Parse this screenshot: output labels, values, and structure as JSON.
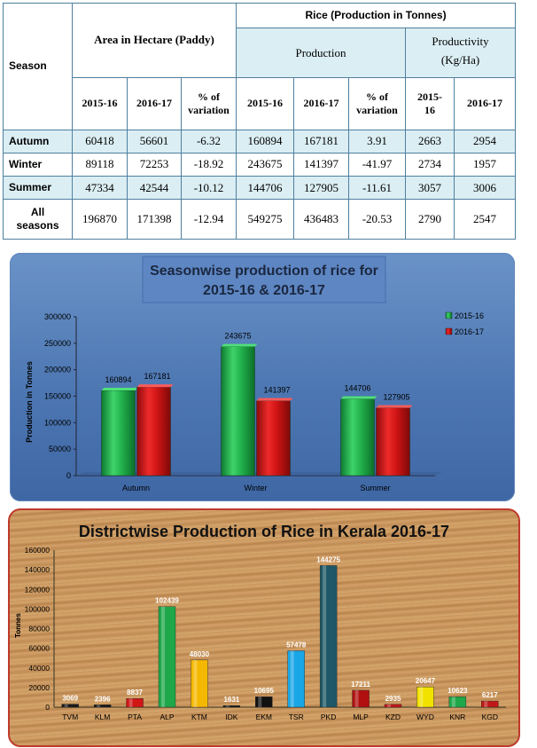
{
  "table": {
    "season_header": "Season",
    "area_header": "Area in Hectare (Paddy)",
    "rice_header": "Rice (Production in Tonnes)",
    "production_header": "Production",
    "productivity_header_1": "Productivity",
    "productivity_header_2": "(Kg/Ha)",
    "col_2015": "2015-16",
    "col_2016": "2016-17",
    "col_var_1": "% of",
    "col_var_2": "variation",
    "col_prod_2015_1": "2015-",
    "col_prod_2015_2": "16",
    "rows": [
      {
        "season_1": "Autumn",
        "season_2": "",
        "area_2015": "60418",
        "area_2016": "56601",
        "area_var": "-6.32",
        "prod_2015": "160894",
        "prod_2016": "167181",
        "prod_var": "3.91",
        "yield_2015": "2663",
        "yield_2016": "2954"
      },
      {
        "season_1": "Winter",
        "season_2": "",
        "area_2015": "89118",
        "area_2016": "72253",
        "area_var": "-18.92",
        "prod_2015": "243675",
        "prod_2016": "141397",
        "prod_var": "-41.97",
        "yield_2015": "2734",
        "yield_2016": "1957"
      },
      {
        "season_1": "Summer",
        "season_2": "",
        "area_2015": "47334",
        "area_2016": "42544",
        "area_var": "-10.12",
        "prod_2015": "144706",
        "prod_2016": "127905",
        "prod_var": "-11.61",
        "yield_2015": "3057",
        "yield_2016": "3006"
      },
      {
        "season_1": "All",
        "season_2": "seasons",
        "area_2015": "196870",
        "area_2016": "171398",
        "area_var": "-12.94",
        "prod_2015": "549275",
        "prod_2016": "436483",
        "prod_var": "-20.53",
        "yield_2015": "2790",
        "yield_2016": "2547"
      }
    ]
  },
  "chart_data": [
    {
      "type": "bar",
      "title_line1": "Seasonwise production of rice for",
      "title_line2": "2015-16 & 2016-17",
      "ylabel": "Production in Tonnes",
      "xlabel": "",
      "ylim": [
        0,
        300000
      ],
      "yticks": [
        "0",
        "50000",
        "100000",
        "150000",
        "200000",
        "250000",
        "300000"
      ],
      "categories": [
        "Autumn",
        "Winter",
        "Summer"
      ],
      "series": [
        {
          "name": "2015-16",
          "color": "#1fa84a",
          "values": [
            160894,
            243675,
            144706
          ]
        },
        {
          "name": "2016-17",
          "color": "#d01515",
          "values": [
            167181,
            141397,
            127905
          ]
        }
      ],
      "legend": "right",
      "grid": false
    },
    {
      "type": "bar",
      "title": "Districtwise Production of Rice in Kerala  2016-17",
      "ylabel": "Tonnes",
      "xlabel": "",
      "ylim": [
        0,
        160000
      ],
      "yticks": [
        "0",
        "20000",
        "40000",
        "60000",
        "80000",
        "100000",
        "120000",
        "140000",
        "160000"
      ],
      "categories": [
        "TVM",
        "KLM",
        "PTA",
        "ALP",
        "KTM",
        "IDK",
        "EKM",
        "TSR",
        "PKD",
        "MLP",
        "KZD",
        "WYD",
        "KNR",
        "KGD"
      ],
      "values": [
        3069,
        2396,
        8837,
        102439,
        48030,
        1631,
        10695,
        57478,
        144275,
        17211,
        2935,
        20647,
        10623,
        6217
      ],
      "colors": [
        "#1a1a1a",
        "#1a1a1a",
        "#d01515",
        "#1fa84a",
        "#f5b800",
        "#1a1a1a",
        "#111111",
        "#19a6e6",
        "#1f5766",
        "#b01010",
        "#c01818",
        "#f2e200",
        "#1fa84a",
        "#c01818"
      ],
      "legend": "none",
      "grid": false
    }
  ]
}
